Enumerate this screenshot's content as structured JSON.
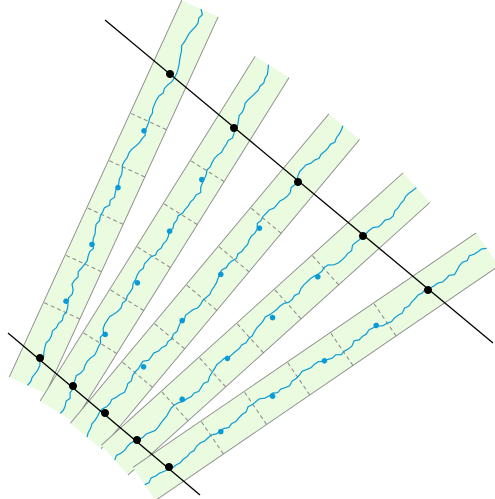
{
  "diagram": {
    "strip_count": 5,
    "colors": {
      "background": "#ffffff",
      "strip_fill": "#eafbe0",
      "strip_edge": "#8a8a8a",
      "wavy_line": "#0a9bd6",
      "dashed_tick": "#888888",
      "baseline": "#000000",
      "node": "#000000",
      "mid_point": "#0a9bd6"
    }
  }
}
